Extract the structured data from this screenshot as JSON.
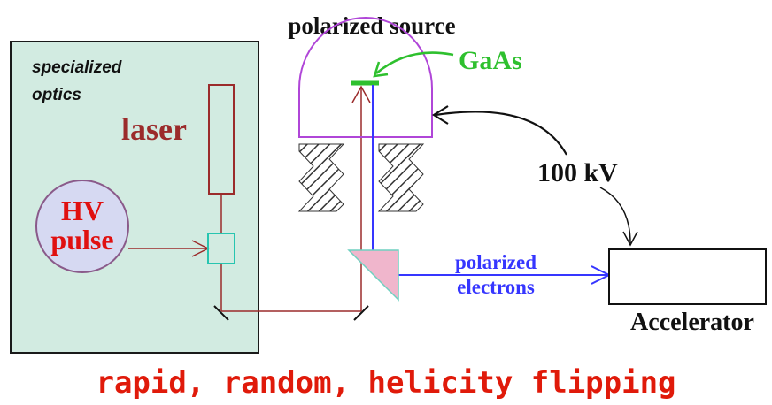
{
  "labels": {
    "specialized_optics_line1": "specialized",
    "specialized_optics_line2": "optics",
    "laser": "laser",
    "hv_line1": "HV",
    "hv_line2": "pulse",
    "polarized_source": "polarized source",
    "gaas": "GaAs",
    "voltage": "100 kV",
    "polarized_electrons_line1": "polarized",
    "polarized_electrons_line2": "electrons",
    "accelerator": "Accelerator",
    "caption": "rapid, random, helicity flipping"
  },
  "colors": {
    "optics_box_fill": "#d2ebe1",
    "optics_box_stroke": "#1a1a1a",
    "laser_red": "#9b2b2b",
    "hv_fill": "#d6d9f2",
    "hv_stroke": "#8a5a8a",
    "hv_text": "#e01010",
    "pockels_cell": "#27c5b0",
    "source_violet": "#b046d8",
    "gaas_green": "#2ec02e",
    "electron_blue": "#3636ff",
    "prism_pink": "#f0b6cc",
    "prism_teal": "#6fd0c0",
    "caption_red": "#e01a0a",
    "black": "#111111"
  }
}
